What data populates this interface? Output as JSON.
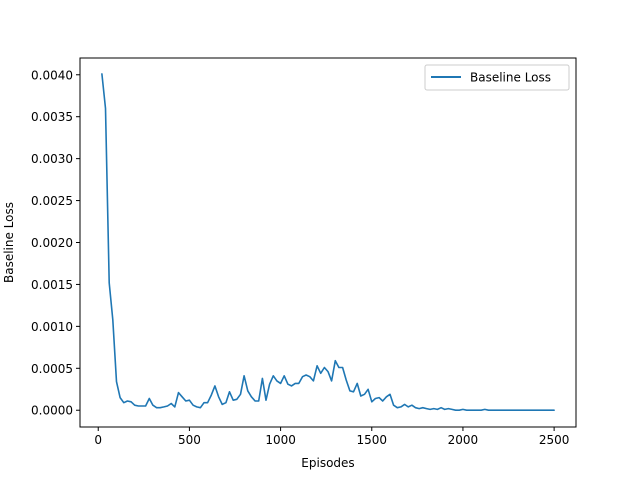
{
  "chart_data": {
    "type": "line",
    "title": "",
    "xlabel": "Episodes",
    "ylabel": "Baseline Loss",
    "xlim": [
      -100,
      2620
    ],
    "ylim": [
      -0.0002,
      0.0042
    ],
    "xticks": [
      0,
      500,
      1000,
      1500,
      2000,
      2500
    ],
    "xtick_labels": [
      "0",
      "500",
      "1000",
      "1500",
      "2000",
      "2500"
    ],
    "yticks": [
      0.0,
      0.0005,
      0.001,
      0.0015,
      0.002,
      0.0025,
      0.003,
      0.0035,
      0.004
    ],
    "ytick_labels": [
      "0.0000",
      "0.0005",
      "0.0010",
      "0.0015",
      "0.0020",
      "0.0025",
      "0.0030",
      "0.0035",
      "0.0040"
    ],
    "grid": false,
    "legend_position": "top-right",
    "series": [
      {
        "name": "Baseline Loss",
        "color": "#1f77b4",
        "x": [
          20,
          40,
          60,
          80,
          100,
          120,
          140,
          160,
          180,
          200,
          220,
          240,
          260,
          280,
          300,
          320,
          340,
          360,
          380,
          400,
          420,
          440,
          460,
          480,
          500,
          520,
          540,
          560,
          580,
          600,
          620,
          640,
          660,
          680,
          700,
          720,
          740,
          760,
          780,
          800,
          820,
          840,
          860,
          880,
          900,
          920,
          940,
          960,
          980,
          1000,
          1020,
          1040,
          1060,
          1080,
          1100,
          1120,
          1140,
          1160,
          1180,
          1200,
          1220,
          1240,
          1260,
          1280,
          1300,
          1320,
          1340,
          1360,
          1380,
          1400,
          1420,
          1440,
          1460,
          1480,
          1500,
          1520,
          1540,
          1560,
          1580,
          1600,
          1620,
          1640,
          1660,
          1680,
          1700,
          1720,
          1740,
          1760,
          1780,
          1800,
          1820,
          1840,
          1860,
          1880,
          1900,
          1920,
          1940,
          1960,
          1980,
          2000,
          2020,
          2040,
          2060,
          2080,
          2100,
          2120,
          2140,
          2160,
          2180,
          2200,
          2220,
          2240,
          2260,
          2280,
          2300,
          2320,
          2340,
          2360,
          2380,
          2400,
          2420,
          2440,
          2460,
          2480,
          2500
        ],
        "y": [
          0.00401,
          0.0036,
          0.00152,
          0.00108,
          0.00034,
          0.00015,
          9e-05,
          0.00011,
          0.0001,
          6e-05,
          5e-05,
          5e-05,
          5e-05,
          0.00014,
          6e-05,
          3e-05,
          3e-05,
          4e-05,
          5e-05,
          8e-05,
          4e-05,
          0.00021,
          0.00016,
          0.00011,
          0.00012,
          6e-05,
          4e-05,
          3e-05,
          9e-05,
          9e-05,
          0.00018,
          0.00029,
          0.00016,
          7e-05,
          9e-05,
          0.00022,
          0.00012,
          0.00013,
          0.00019,
          0.00041,
          0.00023,
          0.00016,
          0.00011,
          0.00011,
          0.00038,
          0.00012,
          0.00031,
          0.00041,
          0.00035,
          0.00032,
          0.00041,
          0.00031,
          0.00029,
          0.00032,
          0.00032,
          0.0004,
          0.00042,
          0.0004,
          0.00035,
          0.00053,
          0.00044,
          0.00051,
          0.00046,
          0.00035,
          0.00059,
          0.00051,
          0.00051,
          0.00036,
          0.00023,
          0.00022,
          0.00032,
          0.00017,
          0.00019,
          0.00025,
          0.0001,
          0.00014,
          0.00015,
          0.00011,
          0.00016,
          0.00019,
          6e-05,
          3e-05,
          4e-05,
          7e-05,
          4e-05,
          6e-05,
          3e-05,
          2e-05,
          3e-05,
          2e-05,
          1e-05,
          2e-05,
          1e-05,
          3e-05,
          1e-05,
          2e-05,
          1e-05,
          0.0,
          0.0,
          1e-05,
          0.0,
          0.0,
          0.0,
          0.0,
          0.0,
          1e-05,
          0.0,
          0.0,
          0.0,
          0.0,
          0.0,
          0.0,
          0.0,
          0.0,
          0.0,
          0.0,
          0.0,
          0.0,
          0.0,
          0.0,
          0.0,
          0.0,
          0.0,
          0.0,
          0.0
        ]
      }
    ]
  }
}
